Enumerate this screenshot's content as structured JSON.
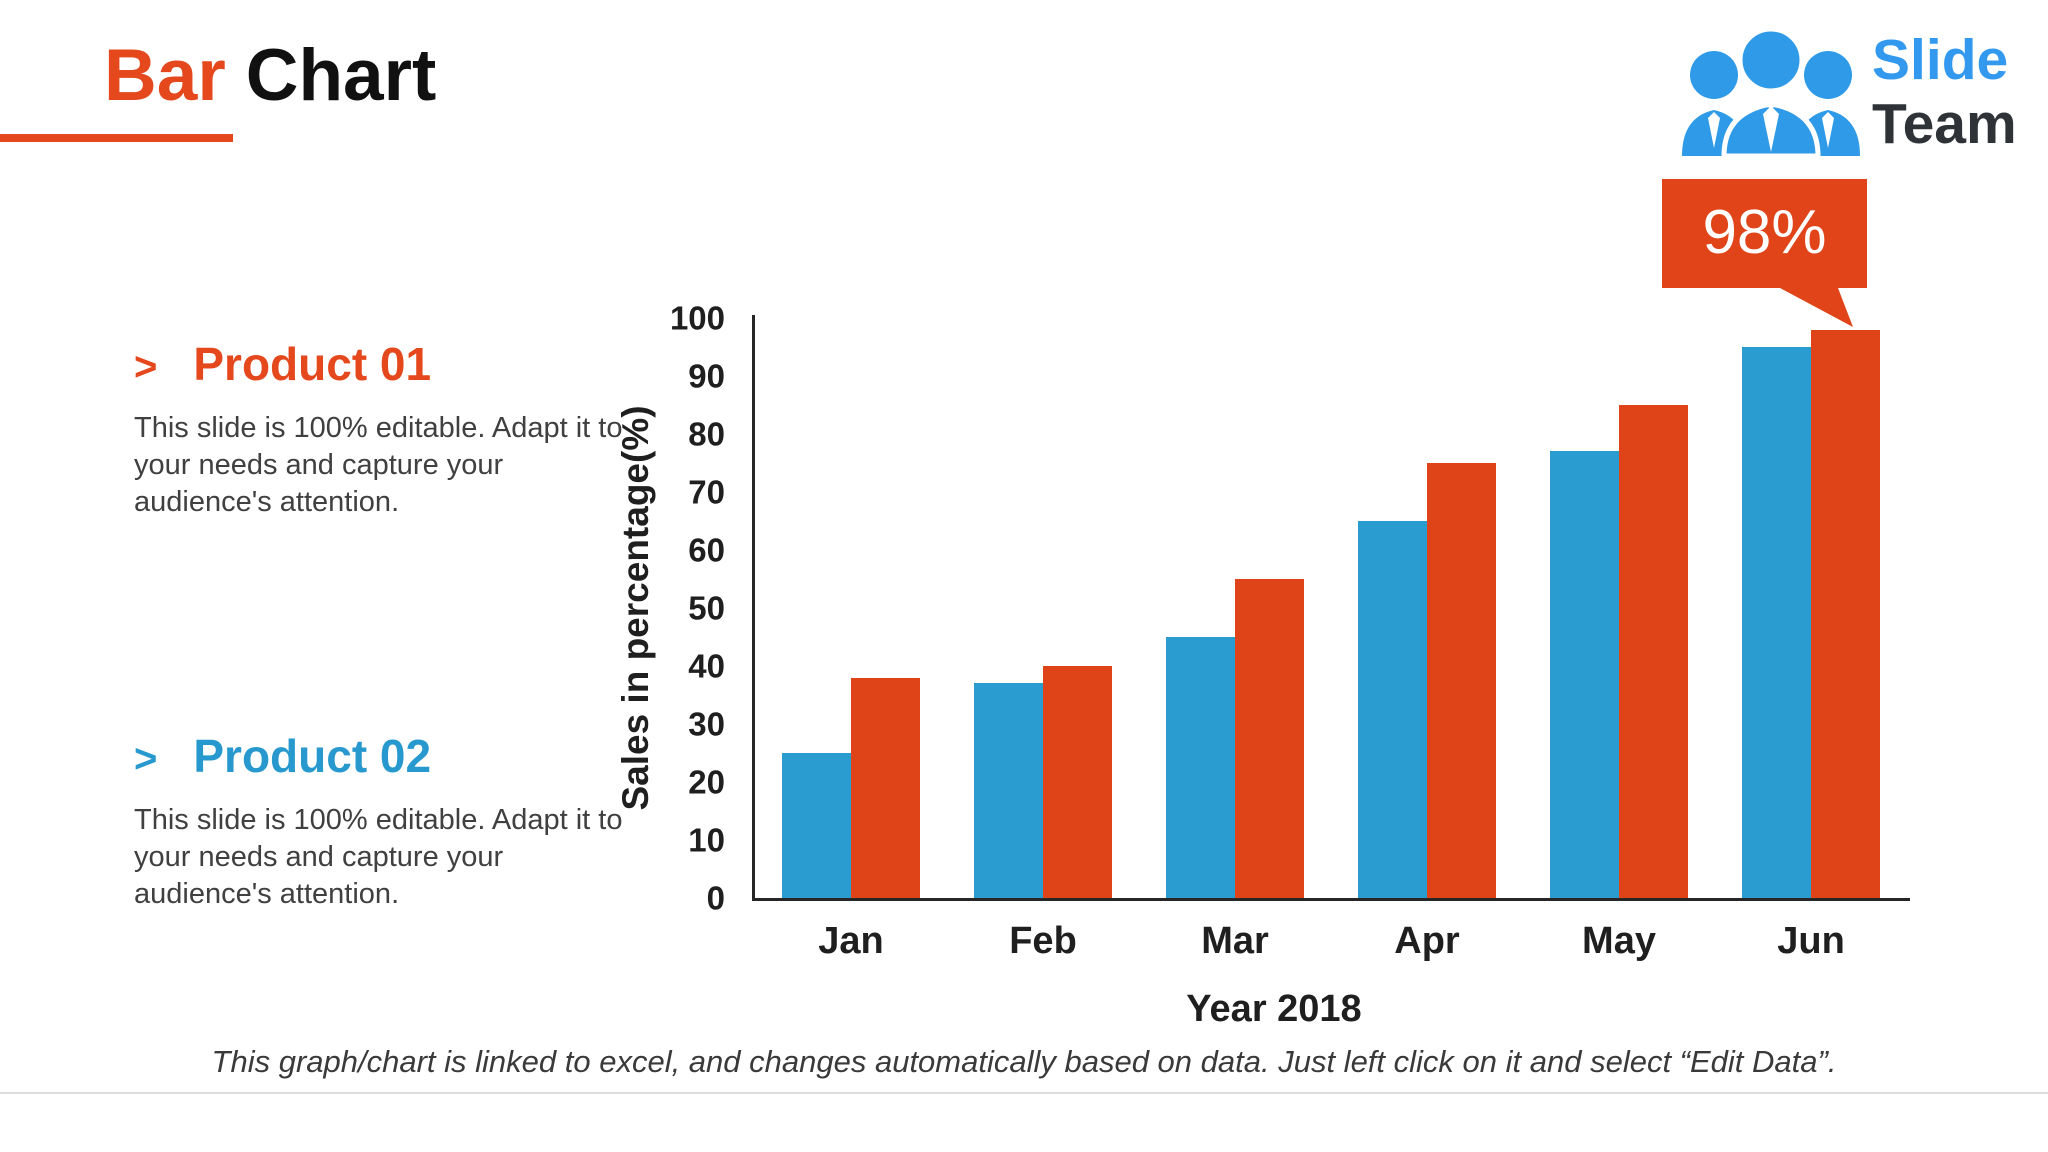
{
  "slide": {
    "title": {
      "accent": "Bar",
      "rest": "Chart"
    },
    "logo": {
      "word_top": "Slide",
      "word_bottom": "Team"
    },
    "products": [
      {
        "bullet": ">",
        "title": "Product 01",
        "body": "This slide is 100% editable. Adapt it to your needs and capture your audience's attention.",
        "accent_color": "#e4481c"
      },
      {
        "bullet": ">",
        "title": "Product 02",
        "body": "This slide is 100% editable. Adapt it to your needs and capture your audience's attention.",
        "accent_color": "#2899ce"
      }
    ],
    "callout_label": "98%",
    "footer_note": "This graph/chart is linked to excel, and changes automatically based on data. Just left click on it and select “Edit Data”."
  },
  "chart_data": {
    "type": "bar",
    "categories": [
      "Jan",
      "Feb",
      "Mar",
      "Apr",
      "May",
      "Jun"
    ],
    "series": [
      {
        "name": "Product 01",
        "color": "#2b9cd0",
        "values": [
          25,
          37,
          45,
          65,
          77,
          95
        ]
      },
      {
        "name": "Product 02",
        "color": "#de4418",
        "values": [
          38,
          40,
          55,
          75,
          85,
          98
        ]
      }
    ],
    "xlabel": "Year 2018",
    "ylabel": "Sales in percentage(%)",
    "ylim": [
      0,
      100
    ],
    "yticks": [
      0,
      10,
      20,
      30,
      40,
      50,
      60,
      70,
      80,
      90,
      100
    ],
    "grid": false,
    "legend": "none",
    "annotation": {
      "text": "98%",
      "category": "Jun",
      "series": "Product 02"
    }
  },
  "colors": {
    "accent_orange": "#e4481c",
    "bar_blue": "#2b9cd0",
    "bar_red": "#de4418",
    "logo_blue": "#3399ee",
    "logo_dark": "#2f3337",
    "axis_text": "#1f1f1f",
    "body_text": "#404040",
    "divider": "#dcdcdc"
  }
}
